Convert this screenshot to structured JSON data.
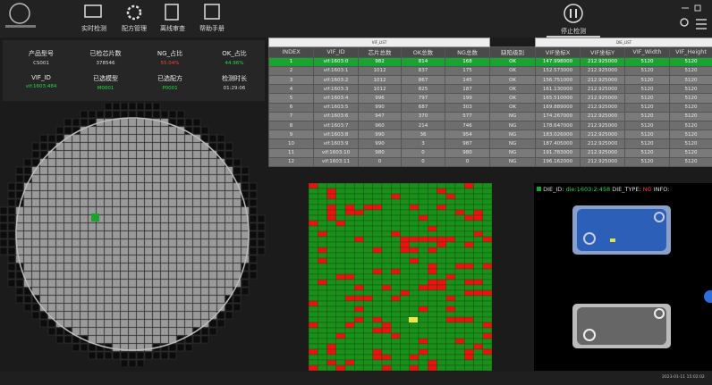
{
  "header": {
    "nav": [
      "实时检测",
      "配方管理",
      "离线审查",
      "帮助手册"
    ],
    "action": "停止检测"
  },
  "stats": [
    {
      "label": "产品型号",
      "value": "CS001"
    },
    {
      "label": "已检芯片数",
      "value": "378546"
    },
    {
      "label": "NG_占比",
      "value": "55.04%"
    },
    {
      "label": "OK_占比",
      "value": "44.96%"
    },
    {
      "label": "VIF_ID",
      "value": "vif:1603:484"
    },
    {
      "label": "已选模型",
      "value": "M0001"
    },
    {
      "label": "已选配方",
      "value": "P0001"
    },
    {
      "label": "检测时长",
      "value": "01:29:06"
    }
  ],
  "table": {
    "groups": [
      "VIF_LIST",
      "DIE_LIST"
    ],
    "columns": [
      "INDEX",
      "VIF_ID",
      "芯片总数",
      "OK总数",
      "NG总数",
      "缺陷级别",
      "VIF坐标X",
      "VIF坐标Y",
      "VIF_Width",
      "VIF_Height"
    ],
    "rows": [
      [
        "1",
        "vif:1603:0",
        "982",
        "814",
        "168",
        "OK",
        "147.998000",
        "212.925000",
        "5120",
        "5120"
      ],
      [
        "2",
        "vif:1603:1",
        "1012",
        "837",
        "175",
        "OK",
        "152.573000",
        "212.925000",
        "5120",
        "5120"
      ],
      [
        "3",
        "vif:1603:2",
        "1012",
        "867",
        "145",
        "OK",
        "156.751000",
        "212.925000",
        "5120",
        "5120"
      ],
      [
        "4",
        "vif:1603:3",
        "1012",
        "825",
        "187",
        "OK",
        "161.130000",
        "212.925000",
        "5120",
        "5120"
      ],
      [
        "5",
        "vif:1603:4",
        "996",
        "797",
        "199",
        "OK",
        "165.510000",
        "212.925000",
        "5120",
        "5120"
      ],
      [
        "6",
        "vif:1603:5",
        "990",
        "687",
        "303",
        "OK",
        "169.889000",
        "212.925000",
        "5120",
        "5120"
      ],
      [
        "7",
        "vif:1603:6",
        "947",
        "370",
        "577",
        "NG",
        "174.267000",
        "212.925000",
        "5120",
        "5120"
      ],
      [
        "8",
        "vif:1603:7",
        "960",
        "214",
        "746",
        "NG",
        "178.647000",
        "212.925000",
        "5120",
        "5120"
      ],
      [
        "9",
        "vif:1603:8",
        "990",
        "36",
        "954",
        "NG",
        "183.026000",
        "212.925000",
        "5120",
        "5120"
      ],
      [
        "10",
        "vif:1603:9",
        "990",
        "3",
        "987",
        "NG",
        "187.405000",
        "212.925000",
        "5120",
        "5120"
      ],
      [
        "11",
        "vif:1603:10",
        "980",
        "0",
        "980",
        "NG",
        "191.783000",
        "212.925000",
        "5120",
        "5120"
      ],
      [
        "12",
        "vif:1603:11",
        "0",
        "0",
        "0",
        "NG",
        "196.162000",
        "212.925000",
        "5120",
        "5120"
      ]
    ]
  },
  "die_info": {
    "id_label": "DIE_ID:",
    "id": "die:1603:2:458",
    "type_label": "DIE_TYPE:",
    "type": "NG",
    "info_label": "INFO:"
  },
  "status": {
    "datetime": "2023-01-11 15:02:02"
  }
}
